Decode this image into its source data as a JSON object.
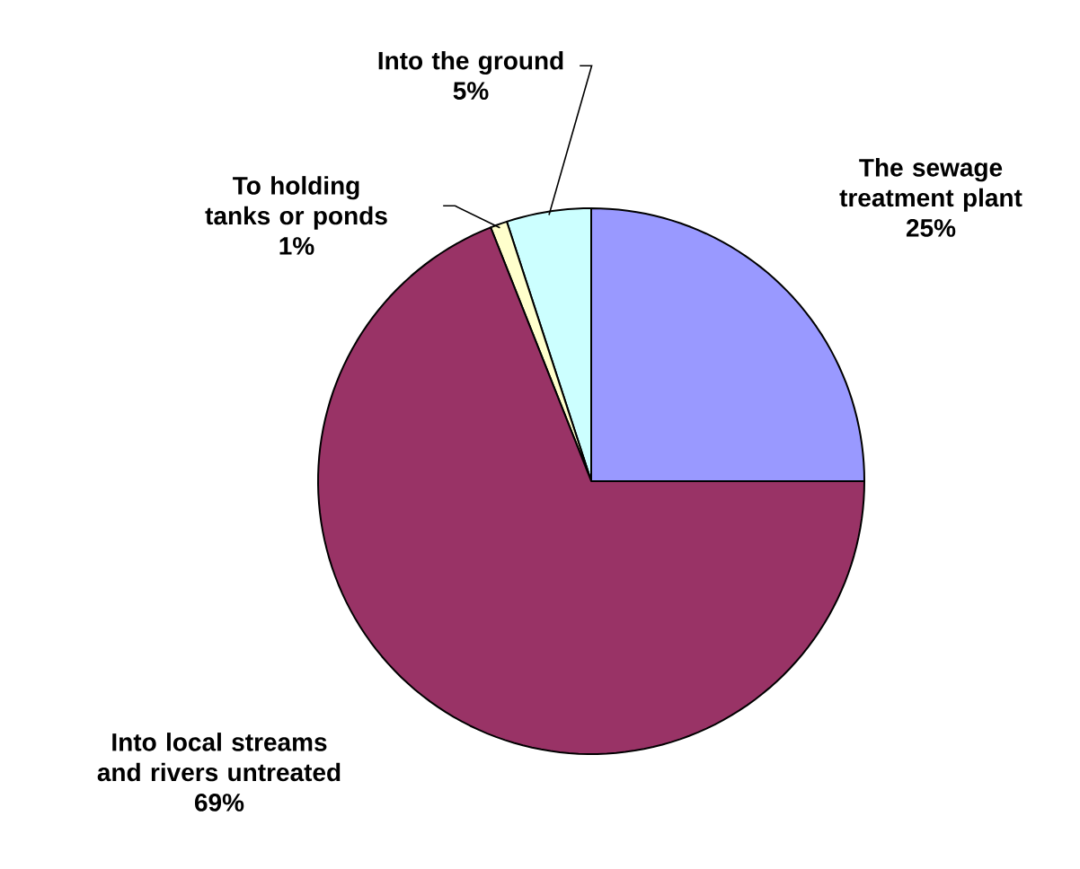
{
  "chart_data": {
    "type": "pie",
    "categories": [
      "The sewage treatment plant",
      "Into the ground",
      "To holding tanks or ponds",
      "Into local streams and rivers untreated"
    ],
    "values": [
      25,
      5,
      1,
      69
    ],
    "value_labels": [
      "25%",
      "5%",
      "1%",
      "69%"
    ],
    "colors": [
      "#9999ff",
      "#ccffff",
      "#ffffcc",
      "#993366"
    ]
  }
}
